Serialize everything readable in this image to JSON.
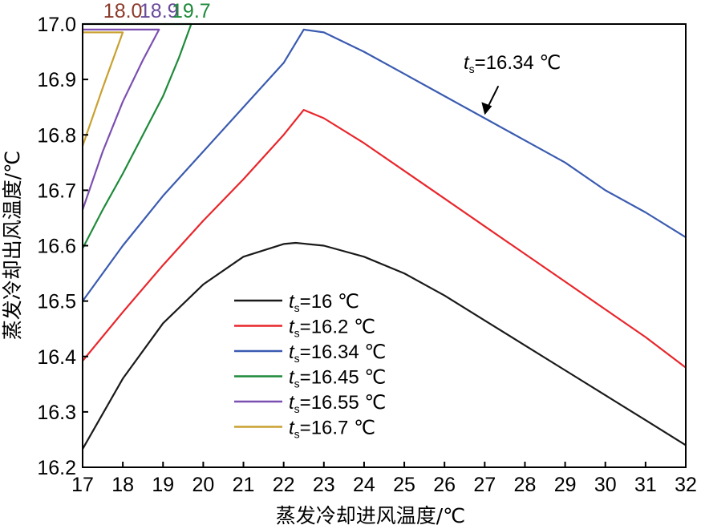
{
  "chart_data": {
    "type": "line",
    "title": "",
    "xlabel": "蒸发冷却进风温度/℃",
    "ylabel": "蒸发冷却出风温度/℃",
    "xlim": [
      17,
      32
    ],
    "ylim": [
      16.2,
      17.0
    ],
    "xticks": [
      "17",
      "18",
      "19",
      "20",
      "21",
      "22",
      "23",
      "24",
      "25",
      "26",
      "27",
      "28",
      "29",
      "30",
      "31",
      "32"
    ],
    "yticks": [
      "16.2",
      "16.3",
      "16.4",
      "16.5",
      "16.6",
      "16.7",
      "16.8",
      "16.9",
      "17.0"
    ],
    "grid": false,
    "legend_position": "center-left",
    "series": [
      {
        "name": "ts=16 ℃",
        "label_main": "t",
        "label_sub": "s",
        "label_rest": "=16 ℃",
        "color": "#1a1a1a",
        "x": [
          17,
          18,
          19,
          20,
          21,
          22,
          22.3,
          23,
          24,
          25,
          26,
          27,
          28,
          29,
          30,
          31,
          32
        ],
        "y": [
          16.233,
          16.36,
          16.46,
          16.53,
          16.58,
          16.603,
          16.605,
          16.6,
          16.58,
          16.55,
          16.51,
          16.465,
          16.42,
          16.375,
          16.33,
          16.285,
          16.24
        ]
      },
      {
        "name": "ts=16.2 ℃",
        "label_main": "t",
        "label_sub": "s",
        "label_rest": "=16.2 ℃",
        "color": "#e8262b",
        "x": [
          17,
          18,
          19,
          20,
          21,
          22,
          22.5,
          23,
          24,
          25,
          26,
          27,
          28,
          29,
          30,
          31,
          32
        ],
        "y": [
          16.392,
          16.48,
          16.565,
          16.645,
          16.72,
          16.8,
          16.845,
          16.83,
          16.785,
          16.735,
          16.685,
          16.635,
          16.585,
          16.535,
          16.485,
          16.435,
          16.38
        ]
      },
      {
        "name": "ts=16.34 ℃",
        "label_main": "t",
        "label_sub": "s",
        "label_rest": "=16.34 ℃",
        "color": "#3a5bb0",
        "x": [
          17,
          18,
          19,
          20,
          21,
          22,
          22.5,
          23,
          24,
          25,
          26,
          27,
          28,
          29,
          30,
          31,
          32
        ],
        "y": [
          16.5,
          16.6,
          16.69,
          16.77,
          16.85,
          16.93,
          16.99,
          16.985,
          16.95,
          16.91,
          16.87,
          16.83,
          16.79,
          16.75,
          16.7,
          16.66,
          16.615
        ]
      },
      {
        "name": "ts=16.45 ℃",
        "label_main": "t",
        "label_sub": "s",
        "label_rest": "=16.45 ℃",
        "color": "#1e8a3a",
        "x": [
          17,
          17.5,
          18,
          18.5,
          19,
          19.4,
          19.7,
          17
        ],
        "y": [
          16.595,
          16.665,
          16.73,
          16.8,
          16.87,
          16.94,
          17.0,
          17.0
        ]
      },
      {
        "name": "ts=16.55 ℃",
        "label_main": "t",
        "label_sub": "s",
        "label_rest": "=16.55 ℃",
        "color": "#7b4fb0",
        "x": [
          17,
          17.5,
          18,
          18.5,
          18.9,
          17
        ],
        "y": [
          16.665,
          16.77,
          16.86,
          16.935,
          16.99,
          16.99
        ]
      },
      {
        "name": "ts=16.7 ℃",
        "label_main": "t",
        "label_sub": "s",
        "label_rest": "=16.7 ℃",
        "color": "#c9a030",
        "x": [
          17,
          17.5,
          18,
          17
        ],
        "y": [
          16.78,
          16.885,
          16.985,
          16.985
        ]
      }
    ],
    "annotations": [
      {
        "text": "18.0",
        "x": 18.0,
        "color": "#8b3a2a"
      },
      {
        "text": "18.9",
        "x": 18.9,
        "color": "#6a4a9a"
      },
      {
        "text": "19.7",
        "x": 19.7,
        "color": "#1e8a3a"
      },
      {
        "text_main": "t",
        "text_sub": "s",
        "text_rest": "=16.34 ℃",
        "arrow_to": [
          27,
          16.836
        ]
      }
    ]
  }
}
